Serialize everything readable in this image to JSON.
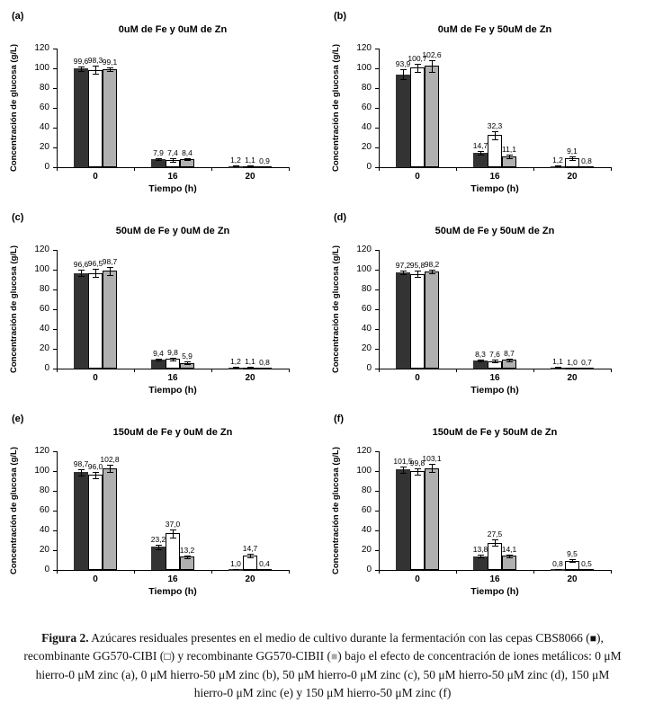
{
  "figure": {
    "series_colors": [
      "#333333",
      "#ffffff",
      "#b0b0b0"
    ],
    "caption": {
      "bold_label": "Figura 2.",
      "part1": " Azúcares residuales presentes en el medio de cultivo durante la fermentación con las cepas CBS8066 (",
      "sq_black": "■",
      "part2": "), recombinante GG570-CIBI (",
      "sq_white": "□",
      "part3": ") y recombinante GG570-CIBII (",
      "sq_gray": "■",
      "part4": ") bajo el efecto de concentración de iones metálicos: 0 μM hierro-0 μM zinc (a), 0 μM hierro-50 μM zinc (b), 50 μM hierro-0 μM zinc (c), 50 μM hierro-50 μM zinc (d), 150 μM hierro-0 μM zinc (e) y 150 μM hierro-50 μM zinc (f)"
    }
  },
  "chart_data": [
    {
      "id": "a",
      "panel_label": "(a)",
      "type": "bar",
      "title": "0uM de Fe y 0uM de Zn",
      "xlabel": "Tiempo (h)",
      "ylabel": "Concentración de glucosa (g/L)",
      "ylim": [
        0,
        120
      ],
      "yticks": [
        0,
        20,
        40,
        60,
        80,
        100,
        120
      ],
      "categories": [
        "0",
        "16",
        "20"
      ],
      "series": [
        {
          "name": "CBS8066",
          "values": [
            99.6,
            7.9,
            1.2
          ],
          "errors": [
            2,
            1,
            0.3
          ]
        },
        {
          "name": "GG570-CIBI",
          "values": [
            98.3,
            7.4,
            1.1
          ],
          "errors": [
            4,
            1.5,
            0.3
          ]
        },
        {
          "name": "GG570-CIBII",
          "values": [
            99.1,
            8.4,
            0.9
          ],
          "errors": [
            2,
            1,
            0.3
          ]
        }
      ]
    },
    {
      "id": "b",
      "panel_label": "(b)",
      "type": "bar",
      "title": "0uM de Fe y 50uM de Zn",
      "xlabel": "Tiempo (h)",
      "ylabel": "Concentración de glucosa (g/L)",
      "ylim": [
        0,
        120
      ],
      "yticks": [
        0,
        20,
        40,
        60,
        80,
        100,
        120
      ],
      "categories": [
        "0",
        "16",
        "20"
      ],
      "series": [
        {
          "name": "CBS8066",
          "values": [
            93.9,
            14.7,
            1.2
          ],
          "errors": [
            5,
            2,
            0.3
          ]
        },
        {
          "name": "GG570-CIBI",
          "values": [
            100.7,
            32.3,
            9.1
          ],
          "errors": [
            4,
            4,
            1.5
          ]
        },
        {
          "name": "GG570-CIBII",
          "values": [
            102.6,
            11.1,
            0.8
          ],
          "errors": [
            6,
            2,
            0.3
          ]
        }
      ]
    },
    {
      "id": "c",
      "panel_label": "(c)",
      "type": "bar",
      "title": "50uM de Fe y 0uM de Zn",
      "xlabel": "Tiempo (h)",
      "ylabel": "Concentración de glucosa (g/L)",
      "ylim": [
        0,
        120
      ],
      "yticks": [
        0,
        20,
        40,
        60,
        80,
        100,
        120
      ],
      "categories": [
        "0",
        "16",
        "20"
      ],
      "series": [
        {
          "name": "CBS8066",
          "values": [
            96.6,
            9.4,
            1.2
          ],
          "errors": [
            3,
            1,
            0.3
          ]
        },
        {
          "name": "GG570-CIBI",
          "values": [
            96.5,
            9.8,
            1.1
          ],
          "errors": [
            4,
            1.5,
            0.3
          ]
        },
        {
          "name": "GG570-CIBII",
          "values": [
            98.7,
            5.9,
            0.8
          ],
          "errors": [
            4,
            1,
            0.3
          ]
        }
      ]
    },
    {
      "id": "d",
      "panel_label": "(d)",
      "type": "bar",
      "title": "50uM de Fe y 50uM de Zn",
      "xlabel": "Tiempo (h)",
      "ylabel": "Concentración de glucosa (g/L)",
      "ylim": [
        0,
        120
      ],
      "yticks": [
        0,
        20,
        40,
        60,
        80,
        100,
        120
      ],
      "categories": [
        "0",
        "16",
        "20"
      ],
      "series": [
        {
          "name": "CBS8066",
          "values": [
            97.2,
            8.3,
            1.1
          ],
          "errors": [
            2,
            1,
            0.3
          ]
        },
        {
          "name": "GG570-CIBI",
          "values": [
            95.8,
            7.6,
            1.0
          ],
          "errors": [
            3,
            1.5,
            0.3
          ]
        },
        {
          "name": "GG570-CIBII",
          "values": [
            98.2,
            8.7,
            0.7
          ],
          "errors": [
            2,
            1,
            0.3
          ]
        }
      ]
    },
    {
      "id": "e",
      "panel_label": "(e)",
      "type": "bar",
      "title": "150uM de Fe y 0uM de Zn",
      "xlabel": "Tiempo (h)",
      "ylabel": "Concentración de glucosa (g/L)",
      "ylim": [
        0,
        120
      ],
      "yticks": [
        0,
        20,
        40,
        60,
        80,
        100,
        120
      ],
      "categories": [
        "0",
        "16",
        "20"
      ],
      "series": [
        {
          "name": "CBS8066",
          "values": [
            98.7,
            23.2,
            1.0
          ],
          "errors": [
            3,
            2,
            0.3
          ]
        },
        {
          "name": "GG570-CIBI",
          "values": [
            96.0,
            37.0,
            14.7
          ],
          "errors": [
            3,
            4,
            2
          ]
        },
        {
          "name": "GG570-CIBII",
          "values": [
            102.8,
            13.2,
            0.4
          ],
          "errors": [
            4,
            1.5,
            0.2
          ]
        }
      ]
    },
    {
      "id": "f",
      "panel_label": "(f)",
      "type": "bar",
      "title": "150uM de Fe y 50uM de Zn",
      "xlabel": "Tiempo (h)",
      "ylabel": "Concentración de glucosa (g/L)",
      "ylim": [
        0,
        120
      ],
      "yticks": [
        0,
        20,
        40,
        60,
        80,
        100,
        120
      ],
      "categories": [
        "0",
        "16",
        "20"
      ],
      "series": [
        {
          "name": "CBS8066",
          "values": [
            101.5,
            13.8,
            0.8
          ],
          "errors": [
            3,
            1.5,
            0.3
          ]
        },
        {
          "name": "GG570-CIBI",
          "values": [
            99.8,
            27.5,
            9.5
          ],
          "errors": [
            3,
            3,
            1.5
          ]
        },
        {
          "name": "GG570-CIBII",
          "values": [
            103.1,
            14.1,
            0.5
          ],
          "errors": [
            4,
            1.5,
            0.2
          ]
        }
      ]
    }
  ]
}
